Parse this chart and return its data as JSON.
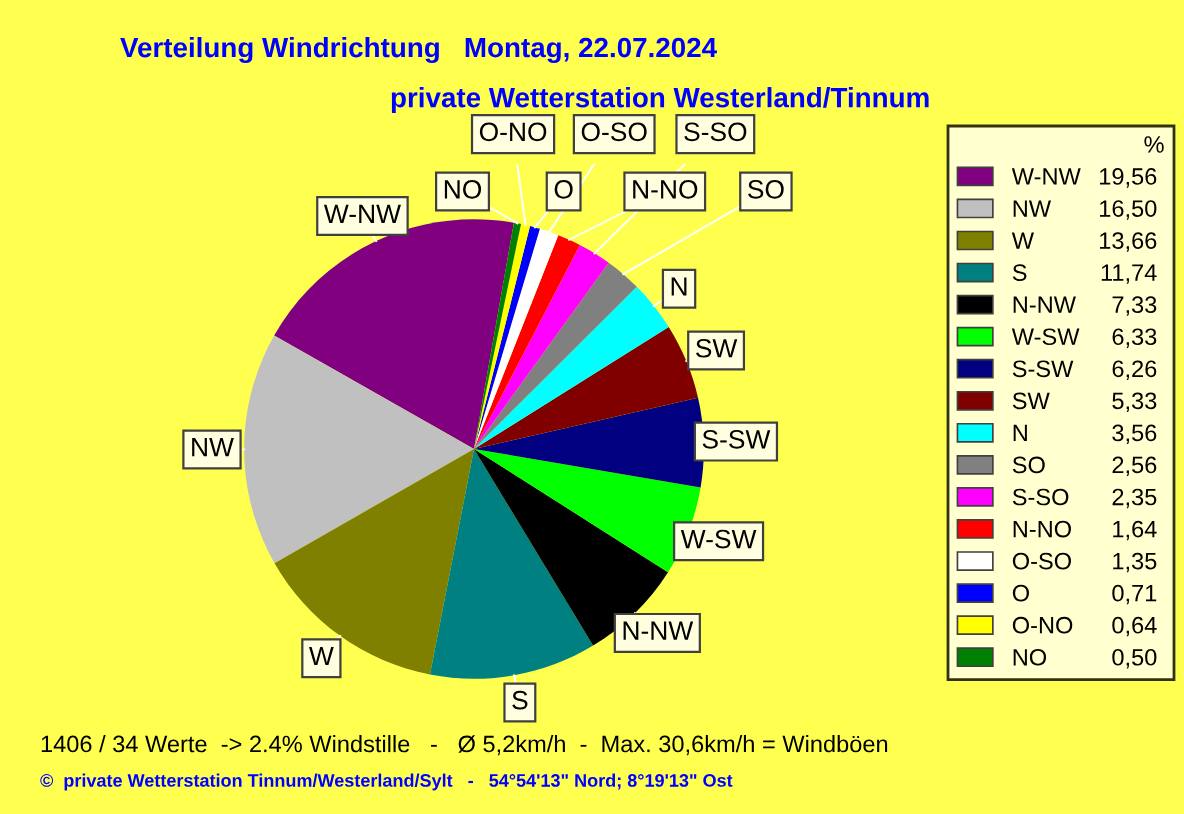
{
  "chart_data": {
    "type": "pie",
    "title": "Verteilung Windrichtung   Montag, 22.07.2024",
    "subtitle": "private Wetterstation Westerland/Tinnum",
    "legend_title": "%",
    "legend": "right",
    "categories": [
      "W-NW",
      "NW",
      "W",
      "S",
      "N-NW",
      "W-SW",
      "S-SW",
      "SW",
      "N",
      "SO",
      "S-SO",
      "N-NO",
      "O-SO",
      "O",
      "O-NO",
      "NO"
    ],
    "values": [
      19.56,
      16.5,
      13.66,
      11.74,
      7.33,
      6.33,
      6.26,
      5.33,
      3.56,
      2.56,
      2.35,
      1.64,
      1.35,
      0.71,
      0.64,
      0.5
    ],
    "value_labels": [
      "19,56",
      "16,50",
      "13,66",
      "11,74",
      "7,33",
      "6,33",
      "6,26",
      "5,33",
      "3,56",
      "2,56",
      "2,35",
      "1,64",
      "1,35",
      "0,71",
      "0,64",
      "0,50"
    ],
    "colors": [
      "#800080",
      "#c0c0c0",
      "#808000",
      "#008080",
      "#000000",
      "#00ff00",
      "#000080",
      "#800000",
      "#00ffff",
      "#808080",
      "#ff00ff",
      "#ff0000",
      "#ffffff",
      "#0000ff",
      "#ffff00",
      "#008000"
    ],
    "annotations": [
      "1406 / 34 Werte  -> 2.4% Windstille   -   Ø 5,2km/h  -  Max. 30,6km/h = Windböen",
      "©  private Wetterstation Tinnum/Westerland/Sylt   -   54°54'13\" Nord; 8°19'13\" Ost"
    ]
  }
}
